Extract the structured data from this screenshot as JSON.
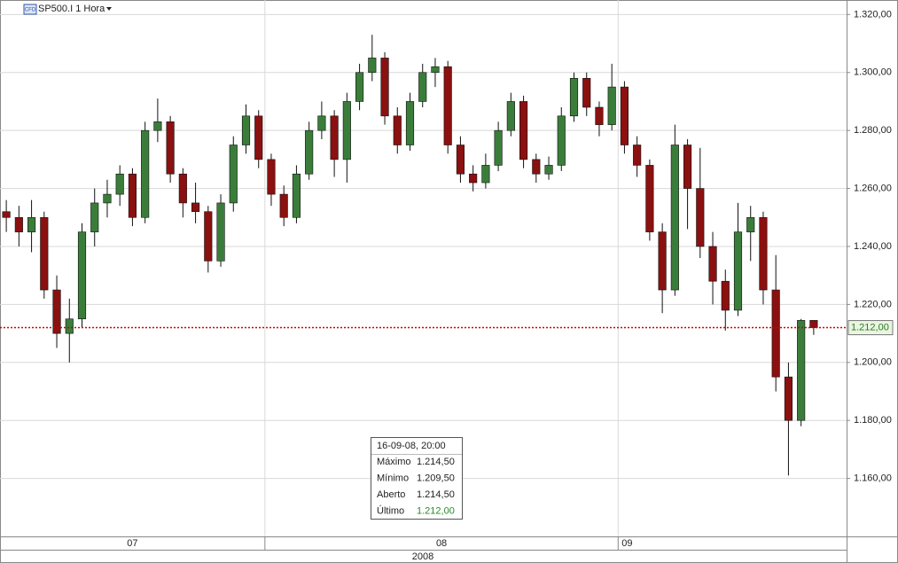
{
  "chart_data": {
    "type": "candlestick",
    "instrument": "SP500.I 1 Hora",
    "badge": "CFD",
    "open": [
      1252,
      1250,
      1245,
      1250,
      1225,
      1210,
      1215,
      1245,
      1255,
      1258,
      1265,
      1250,
      1280,
      1283,
      1265,
      1255,
      1252,
      1235,
      1255,
      1275,
      1285,
      1270,
      1258,
      1250,
      1265,
      1280,
      1285,
      1270,
      1290,
      1300,
      1305,
      1285,
      1275,
      1290,
      1300,
      1302,
      1275,
      1265,
      1262,
      1268,
      1280,
      1290,
      1270,
      1265,
      1268,
      1285,
      1298,
      1288,
      1282,
      1295,
      1275,
      1268,
      1245,
      1225,
      1275,
      1260,
      1240,
      1228,
      1218,
      1245,
      1250,
      1225,
      1195,
      1180,
      1214.5
    ],
    "high": [
      1256,
      1254,
      1256,
      1252,
      1230,
      1222,
      1248,
      1260,
      1263,
      1268,
      1267,
      1283,
      1291,
      1285,
      1267,
      1262,
      1254,
      1258,
      1278,
      1289,
      1287,
      1272,
      1261,
      1268,
      1283,
      1290,
      1287,
      1293,
      1303,
      1313,
      1307,
      1288,
      1293,
      1303,
      1305,
      1304,
      1278,
      1268,
      1272,
      1283,
      1293,
      1292,
      1272,
      1271,
      1288,
      1300,
      1300,
      1290,
      1303,
      1297,
      1278,
      1270,
      1248,
      1282,
      1277,
      1274,
      1245,
      1232,
      1255,
      1254,
      1252,
      1237,
      1200,
      1215,
      1214.5
    ],
    "low": [
      1245,
      1240,
      1238,
      1222,
      1205,
      1200,
      1212,
      1240,
      1250,
      1254,
      1247,
      1248,
      1276,
      1262,
      1250,
      1248,
      1231,
      1233,
      1252,
      1272,
      1267,
      1254,
      1247,
      1248,
      1263,
      1277,
      1264,
      1262,
      1287,
      1297,
      1282,
      1272,
      1273,
      1288,
      1295,
      1272,
      1262,
      1259,
      1260,
      1266,
      1278,
      1267,
      1262,
      1263,
      1266,
      1283,
      1285,
      1278,
      1280,
      1272,
      1264,
      1242,
      1217,
      1223,
      1246,
      1236,
      1220,
      1211,
      1216,
      1235,
      1220,
      1190,
      1161,
      1178,
      1209.5
    ],
    "close": [
      1250,
      1245,
      1250,
      1225,
      1210,
      1215,
      1245,
      1255,
      1258,
      1265,
      1250,
      1280,
      1283,
      1265,
      1255,
      1252,
      1235,
      1255,
      1275,
      1285,
      1270,
      1258,
      1250,
      1265,
      1280,
      1285,
      1270,
      1290,
      1300,
      1305,
      1285,
      1275,
      1290,
      1300,
      1302,
      1275,
      1265,
      1262,
      1268,
      1280,
      1290,
      1270,
      1265,
      1268,
      1285,
      1298,
      1288,
      1282,
      1295,
      1275,
      1268,
      1245,
      1225,
      1275,
      1260,
      1240,
      1228,
      1218,
      1245,
      1250,
      1225,
      1195,
      1180,
      1214.5,
      1212
    ],
    "up_color": "#3a7d3a",
    "down_color": "#8b1010",
    "ylim": [
      1140,
      1325
    ],
    "yticks": [
      {
        "value": 1160,
        "label": "1.160,00"
      },
      {
        "value": 1180,
        "label": "1.180,00"
      },
      {
        "value": 1200,
        "label": "1.200,00"
      },
      {
        "value": 1220,
        "label": "1.220,00"
      },
      {
        "value": 1240,
        "label": "1.240,00"
      },
      {
        "value": 1260,
        "label": "1.260,00"
      },
      {
        "value": 1280,
        "label": "1.280,00"
      },
      {
        "value": 1300,
        "label": "1.300,00"
      },
      {
        "value": 1320,
        "label": "1.320,00"
      }
    ],
    "last_price": {
      "value": 1212,
      "label": "1.212,00"
    },
    "months": [
      {
        "label": "07",
        "start": 0
      },
      {
        "label": "08",
        "start": 21
      },
      {
        "label": "09",
        "start": 49
      }
    ],
    "year": "2008",
    "grid": true,
    "tooltip": {
      "time": "16-09-08, 20:00",
      "rows": [
        [
          "Máximo",
          "1.214,50"
        ],
        [
          "Mínimo",
          "1.209,50"
        ],
        [
          "Aberto",
          "1.214,50"
        ],
        [
          "Último",
          "1.212,00"
        ]
      ]
    }
  }
}
